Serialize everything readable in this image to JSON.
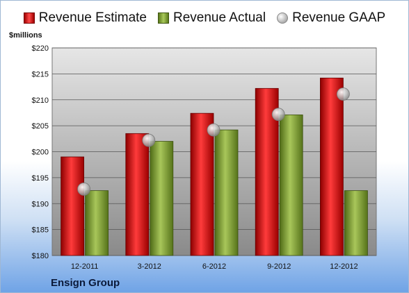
{
  "chart_data": {
    "type": "bar",
    "categories": [
      "12-2011",
      "3-2012",
      "6-2012",
      "9-2012",
      "12-2012"
    ],
    "series": [
      {
        "name": "Revenue Estimate",
        "values": [
          199.0,
          203.5,
          207.4,
          212.2,
          214.2
        ],
        "color": "#d01818"
      },
      {
        "name": "Revenue Actual",
        "values": [
          192.5,
          202.0,
          204.2,
          207.1,
          192.5
        ],
        "color": "#8db04a"
      },
      {
        "name": "Revenue GAAP",
        "values": [
          192.8,
          202.2,
          204.2,
          207.2,
          211.1
        ],
        "color": "#b0b0b0"
      }
    ],
    "ylabel": "$millions",
    "ylim": [
      180,
      220
    ],
    "yticks": [
      "$180",
      "$185",
      "$190",
      "$195",
      "$200",
      "$205",
      "$210",
      "$215",
      "$220"
    ],
    "legend": "top",
    "grid": true,
    "company": "Ensign Group"
  }
}
